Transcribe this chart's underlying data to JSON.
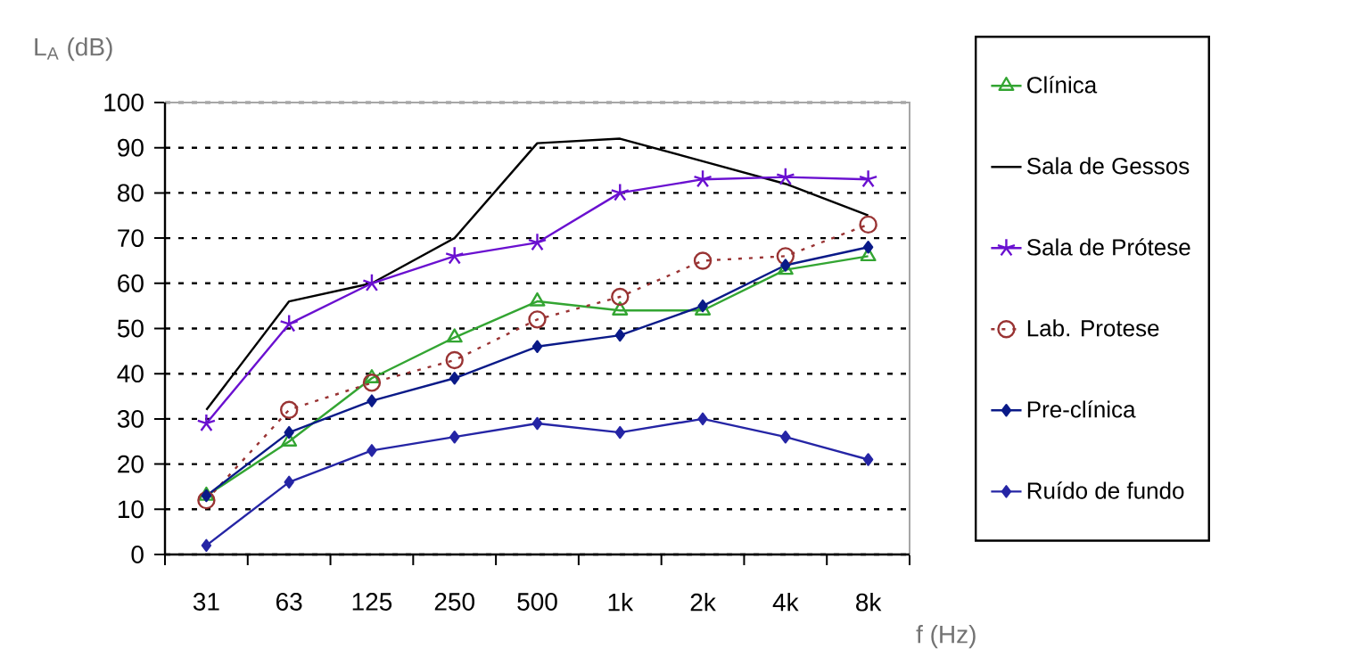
{
  "chart_data": {
    "type": "line",
    "ylabel": "L$_{A}$ (dB)",
    "xlabel": "f (Hz)",
    "categories": [
      "31",
      "63",
      "125",
      "250",
      "500",
      "1k",
      "2k",
      "4k",
      "8k"
    ],
    "series": [
      {
        "name": "Clínica",
        "color": "#33a532",
        "marker": "triangle",
        "line_style": "solid",
        "values": [
          13,
          25,
          39,
          48,
          56,
          54,
          54,
          63,
          66
        ]
      },
      {
        "name": "Sala de Gessos",
        "color": "#000000",
        "marker": "none",
        "line_style": "solid",
        "values": [
          32,
          56,
          60,
          70,
          91,
          92,
          87,
          82,
          75
        ]
      },
      {
        "name": "Sala de Prótese",
        "color": "#6a10d0",
        "marker": "cross",
        "line_style": "solid",
        "values": [
          29,
          51,
          60,
          66,
          69,
          80,
          83,
          83.5,
          83
        ]
      },
      {
        "name": "Lab. Protese",
        "color": "#993333",
        "marker": "circle",
        "line_style": "dotted",
        "values": [
          12,
          32,
          38,
          43,
          52,
          57,
          65,
          66,
          73
        ]
      },
      {
        "name": "Pre-clínica",
        "color": "#0a1a88",
        "marker": "diamond",
        "line_style": "solid",
        "values": [
          13,
          27,
          34,
          39,
          46,
          48.5,
          55,
          64,
          68
        ]
      },
      {
        "name": "Ruído de fundo",
        "color": "#2525a5",
        "marker": "diamond",
        "line_style": "solid",
        "values": [
          2,
          16,
          23,
          26,
          29,
          27,
          30,
          26,
          21
        ]
      }
    ],
    "ylim": [
      0,
      100
    ],
    "yticks": [
      0,
      10,
      20,
      30,
      40,
      50,
      60,
      70,
      80,
      90,
      100
    ],
    "grid": "y",
    "legend": "right"
  }
}
